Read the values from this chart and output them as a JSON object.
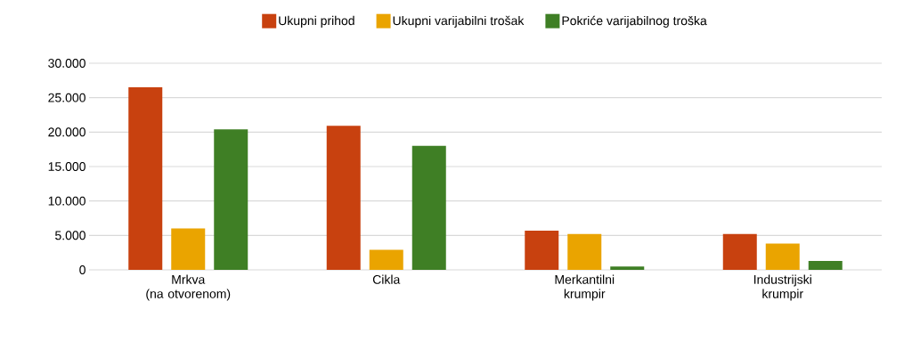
{
  "chart_data": {
    "type": "bar",
    "categories": [
      "Mrkva\n(na otvorenom)",
      "Cikla",
      "Merkantilni\nkrumpir",
      "Industrijski\nkrumpir"
    ],
    "series": [
      {
        "name": "Ukupni prihod",
        "color": "#c8410f",
        "values": [
          26500,
          20900,
          5700,
          5200
        ]
      },
      {
        "name": "Ukupni varijabilni trošak",
        "color": "#eaa400",
        "values": [
          6000,
          2900,
          5200,
          3800
        ]
      },
      {
        "name": "Pokriće varijabilnog troška",
        "color": "#3f7f25",
        "values": [
          20400,
          18000,
          500,
          1300
        ]
      }
    ],
    "ylim": [
      0,
      30000
    ],
    "yticks": [
      {
        "value": 0,
        "label": "0"
      },
      {
        "value": 5000,
        "label": "5.000"
      },
      {
        "value": 10000,
        "label": "10.000"
      },
      {
        "value": 15000,
        "label": "15.000"
      },
      {
        "value": 20000,
        "label": "20.000"
      },
      {
        "value": 25000,
        "label": "25.000"
      },
      {
        "value": 30000,
        "label": "30.000"
      }
    ],
    "grid": "y",
    "legend": "top"
  }
}
